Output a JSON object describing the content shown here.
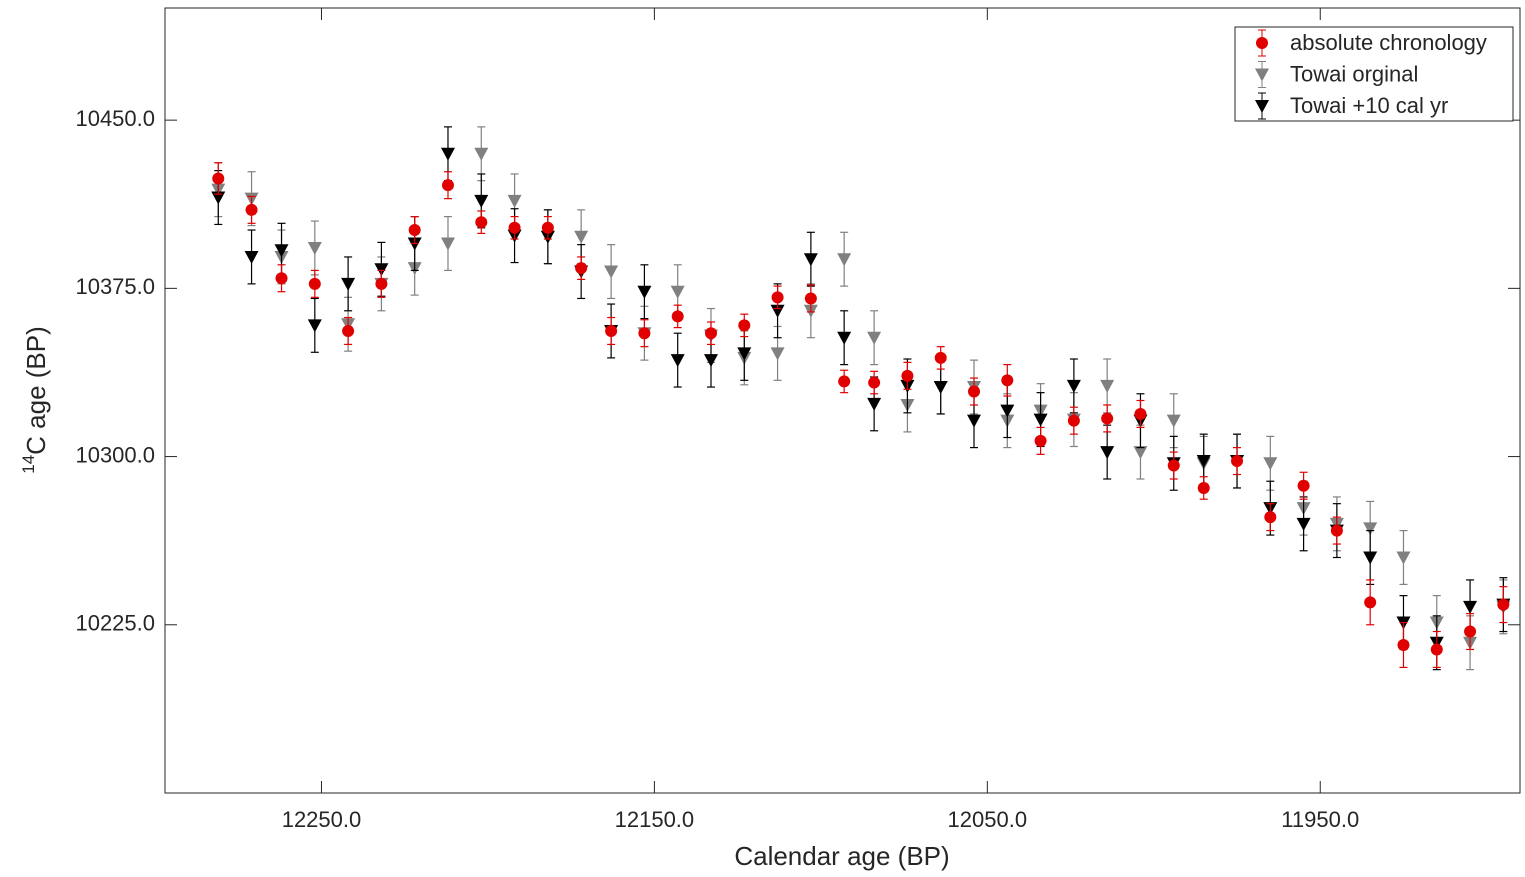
{
  "chart_data": {
    "type": "scatter",
    "xlabel": "Calendar age (BP)",
    "ylabel_superscript": "14",
    "ylabel": "C age (BP)",
    "x_reversed": true,
    "xlim": [
      12297,
      11890
    ],
    "ylim": [
      10150,
      10500
    ],
    "xticks": [
      {
        "value": 12250,
        "label": "12250.0"
      },
      {
        "value": 12150,
        "label": "12150.0"
      },
      {
        "value": 12050,
        "label": "12050.0"
      },
      {
        "value": 11950,
        "label": "11950.0"
      }
    ],
    "yticks": [
      {
        "value": 10225,
        "label": "10225.0"
      },
      {
        "value": 10300,
        "label": "10300.0"
      },
      {
        "value": 10375,
        "label": "10375.0"
      },
      {
        "value": 10450,
        "label": "10450.0"
      }
    ],
    "legend": "upper right",
    "x": [
      12281,
      12271,
      12262,
      12252,
      12242,
      12232,
      12222,
      12212,
      12202,
      12192,
      12182,
      12172,
      12163,
      12153,
      12143,
      12133,
      12123,
      12113,
      12103,
      12093,
      12084,
      12074,
      12064,
      12054,
      12044,
      12034,
      12024,
      12014,
      12004,
      11994,
      11985,
      11975,
      11965,
      11955,
      11945,
      11935,
      11925,
      11915,
      11905,
      11895
    ],
    "series": [
      {
        "name": "absolute chronology",
        "color": "#e00000",
        "marker": "circle",
        "values": [
          10424,
          10410,
          10379.5,
          10377,
          10356,
          10377,
          10401,
          10421,
          10404.5,
          10402,
          10402,
          10384,
          10356,
          10355,
          10362.5,
          10355,
          10358.5,
          10371,
          10370.5,
          10333.5,
          10333,
          10336,
          10344,
          10329,
          10334,
          10307,
          10316,
          10317,
          10319,
          10296,
          10286,
          10298,
          10273,
          10287,
          10267,
          10235,
          10216,
          10214,
          10222,
          10234
        ],
        "errors": [
          7,
          6,
          6,
          6,
          6,
          6,
          6,
          6,
          5,
          5,
          5,
          5,
          6,
          6,
          5,
          5,
          5,
          5,
          6,
          5,
          5,
          6,
          5,
          6,
          7,
          6,
          6,
          6,
          6,
          6,
          5,
          6,
          6,
          6,
          6,
          10,
          10,
          8,
          8,
          8
        ]
      },
      {
        "name": "Towai orginal",
        "color": "#808080",
        "marker": "triangle",
        "values": [
          10419,
          10415,
          10389,
          10393,
          10359,
          10377,
          10384,
          10395,
          10435,
          10414,
          10398,
          10398,
          10382.5,
          10355,
          10373.5,
          10354,
          10344,
          10346,
          10365,
          10388,
          10353,
          10323,
          10331,
          10331,
          10316,
          10320.5,
          10316.5,
          10331.5,
          10302,
          10316,
          10297,
          10298,
          10297,
          10277,
          10270,
          10268,
          10255,
          10226,
          10217,
          10233
        ],
        "errors": [
          12,
          12,
          12,
          12,
          12,
          12,
          12,
          12,
          12,
          12,
          12,
          12,
          12,
          12,
          12,
          12,
          12,
          12,
          12,
          12,
          12,
          12,
          12,
          12,
          12,
          12,
          12,
          12,
          12,
          12,
          12,
          12,
          12,
          12,
          12,
          12,
          12,
          12,
          12,
          12
        ]
      },
      {
        "name": "Towai +10 cal yr",
        "color": "#000000",
        "marker": "triangle",
        "values": [
          10415.5,
          10389,
          10392,
          10358.5,
          10377,
          10383.5,
          10395,
          10435,
          10414,
          10398.5,
          10398,
          10382.5,
          10356,
          10373.5,
          10343,
          10343,
          10346,
          10365,
          10388,
          10353,
          10323.5,
          10331.5,
          10331,
          10316,
          10320.5,
          10316.5,
          10331.5,
          10302,
          10316,
          10297,
          10298,
          10298,
          10277,
          10270,
          10267,
          10255,
          10226,
          10217,
          10233,
          10234
        ],
        "errors": [
          12,
          12,
          12,
          12,
          12,
          12,
          12,
          12,
          12,
          12,
          12,
          12,
          12,
          12,
          12,
          12,
          12,
          12,
          12,
          12,
          12,
          12,
          12,
          12,
          12,
          12,
          12,
          12,
          12,
          12,
          12,
          12,
          12,
          12,
          12,
          12,
          12,
          12,
          12,
          12
        ]
      }
    ]
  }
}
